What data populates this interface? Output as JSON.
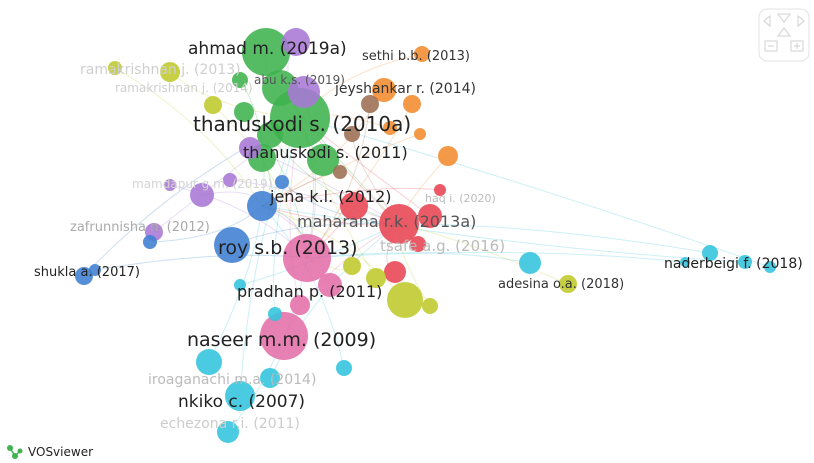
{
  "footer": {
    "app_name": "VOSviewer",
    "icon": "vosviewer-logo-icon"
  },
  "controls": {
    "icons": [
      "pan-left-icon",
      "pan-up-icon",
      "pan-right-icon",
      "pan-down-icon",
      "zoom-out-icon",
      "zoom-in-icon"
    ]
  },
  "colors": {
    "cluster_green": "#3fb34f",
    "cluster_purple": "#a977d6",
    "cluster_red": "#e84452",
    "cluster_blue": "#3f7fd1",
    "cluster_lightblue": "#32c4dd",
    "cluster_yellow": "#bfca2a",
    "cluster_orange": "#f38b2e",
    "cluster_pink": "#e46ea8",
    "cluster_brown": "#9c6e52"
  },
  "labels": [
    {
      "text": "ahmad m. (2019a)",
      "kind": "major"
    },
    {
      "text": "sethi b.b. (2013)",
      "kind": "minor"
    },
    {
      "text": "ramakrishnan j. (2013)",
      "kind": "faded"
    },
    {
      "text": "ramakrishnan j. (2014)",
      "kind": "faded"
    },
    {
      "text": "abu k.s. (2019)",
      "kind": "minor"
    },
    {
      "text": "jeyshankar r. (2014)",
      "kind": "medium"
    },
    {
      "text": "thanuskodi s. (2010a)",
      "kind": "major"
    },
    {
      "text": "thanuskodi s. (2011)",
      "kind": "medium"
    },
    {
      "text": "mamdapur g.m. (2019)",
      "kind": "faded"
    },
    {
      "text": "jena k.l. (2012)",
      "kind": "medium"
    },
    {
      "text": "haq i. (2020)",
      "kind": "faded"
    },
    {
      "text": "maharana r.k. (2013a)",
      "kind": "medium"
    },
    {
      "text": "zafrunnisha n. (2012)",
      "kind": "faded"
    },
    {
      "text": "roy s.b. (2013)",
      "kind": "major"
    },
    {
      "text": "tsafe a.g. (2016)",
      "kind": "faded"
    },
    {
      "text": "shukla a. (2017)",
      "kind": "minor"
    },
    {
      "text": "naderbeigi f. (2018)",
      "kind": "medium"
    },
    {
      "text": "adesina o.a. (2018)",
      "kind": "minor"
    },
    {
      "text": "pradhan p. (2011)",
      "kind": "medium"
    },
    {
      "text": "naseer m.m. (2009)",
      "kind": "major"
    },
    {
      "text": "iroaganachi m.a. (2014)",
      "kind": "faded"
    },
    {
      "text": "nkiko c. (2007)",
      "kind": "medium"
    },
    {
      "text": "echezona r.i. (2011)",
      "kind": "faded"
    }
  ]
}
